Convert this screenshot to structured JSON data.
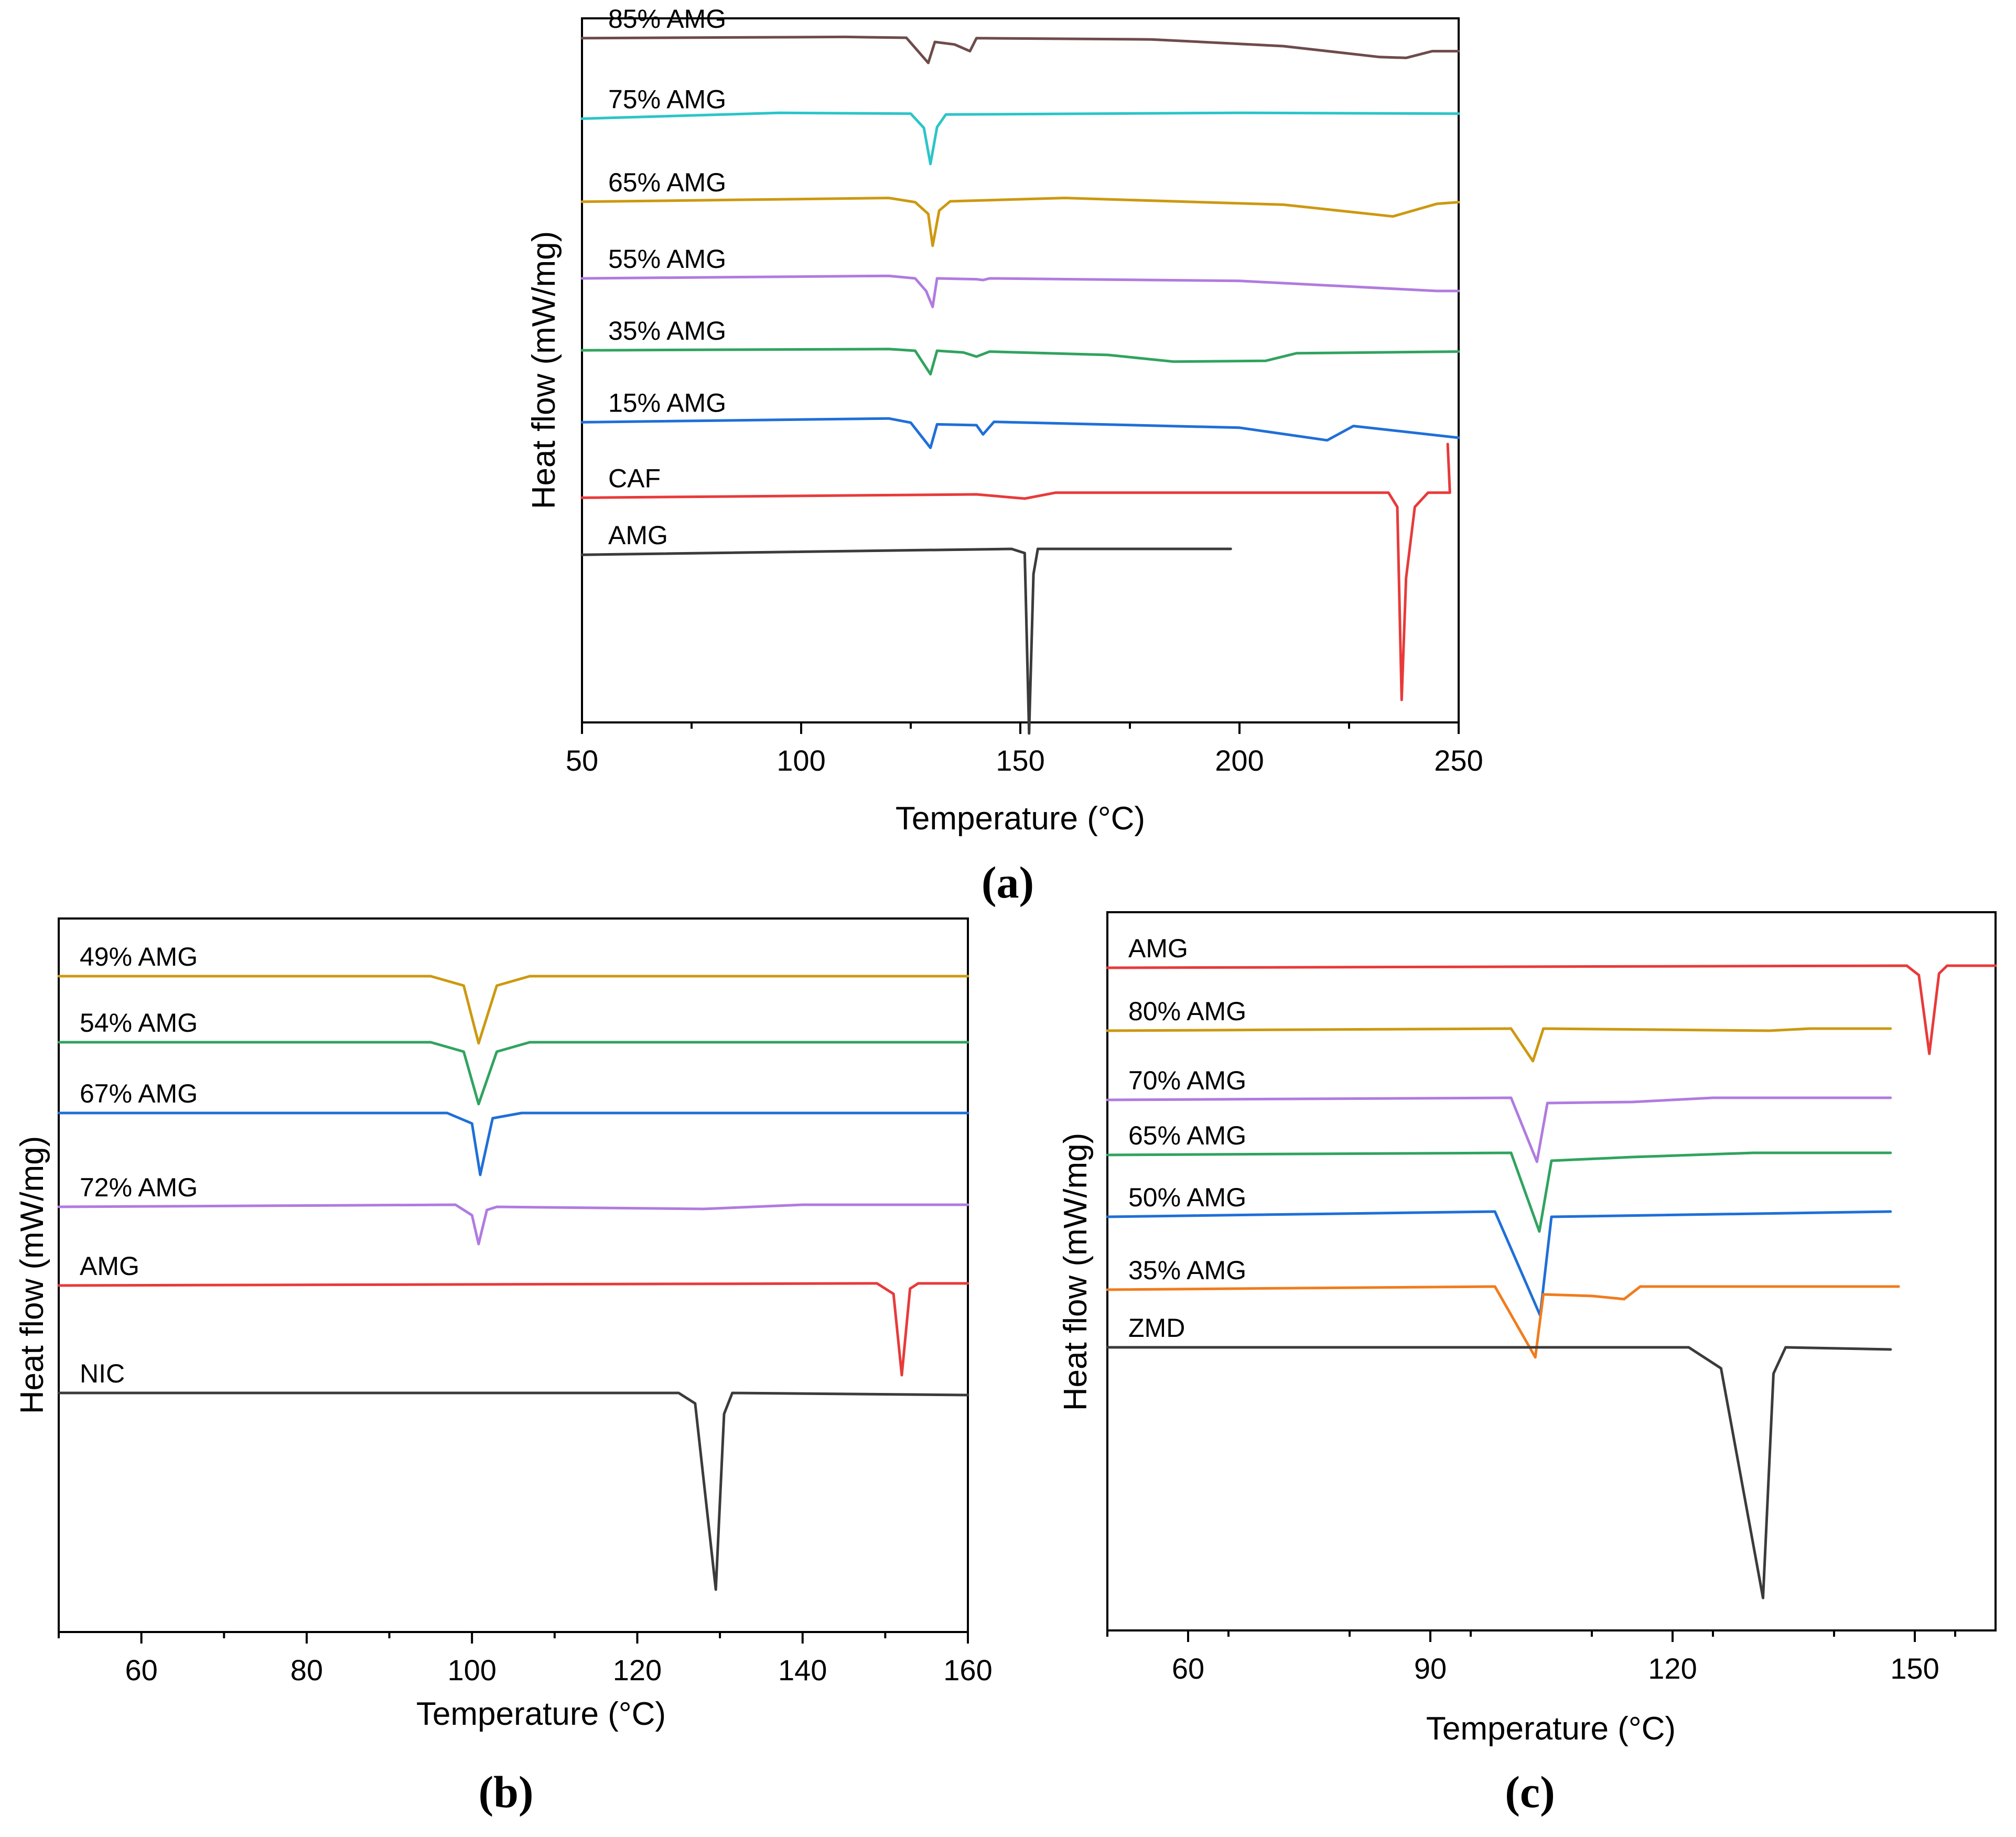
{
  "chart_data": [
    {
      "id": "a",
      "type": "line",
      "caption": "(a)",
      "xlabel": "Temperature (°C)",
      "ylabel": "Heat flow (mW/mg)",
      "xlim": [
        50,
        250
      ],
      "xticks": [
        50,
        100,
        150,
        200,
        250
      ],
      "tick_labels": [
        "50",
        "100",
        "150",
        "200",
        "250"
      ],
      "minor_step": 25,
      "series": [
        {
          "name": "85% AMG",
          "color": "#6e4b4b",
          "baseline": 30,
          "features": [
            {
              "at": 50,
              "value": 29.5
            },
            {
              "at": 110,
              "value": 31
            },
            {
              "at": 124,
              "value": 30
            },
            {
              "at": 129,
              "value": 0
            },
            {
              "at": 130.5,
              "value": 25
            },
            {
              "at": 135,
              "value": 22
            },
            {
              "at": 138.5,
              "value": 14
            },
            {
              "at": 140,
              "value": 29.5
            },
            {
              "at": 180,
              "value": 28
            },
            {
              "at": 210,
              "value": 20
            },
            {
              "at": 232,
              "value": 7
            },
            {
              "at": 238,
              "value": 6
            },
            {
              "at": 244,
              "value": 14
            },
            {
              "at": 250,
              "value": 14
            }
          ]
        },
        {
          "name": "75% AMG",
          "color": "#2bc5c8",
          "baseline": 21,
          "features": [
            {
              "at": 50,
              "value": 16
            },
            {
              "at": 95,
              "value": 23
            },
            {
              "at": 125,
              "value": 22
            },
            {
              "at": 128,
              "value": 5
            },
            {
              "at": 129.5,
              "value": -38
            },
            {
              "at": 131,
              "value": 6
            },
            {
              "at": 133,
              "value": 21
            },
            {
              "at": 200,
              "value": 23
            },
            {
              "at": 250,
              "value": 22
            }
          ]
        },
        {
          "name": "65% AMG",
          "color": "#cc9910",
          "baseline": 19,
          "features": [
            {
              "at": 50,
              "value": 14.5
            },
            {
              "at": 120,
              "value": 19
            },
            {
              "at": 126,
              "value": 14
            },
            {
              "at": 129,
              "value": 0
            },
            {
              "at": 130,
              "value": -38
            },
            {
              "at": 131.5,
              "value": 4
            },
            {
              "at": 134,
              "value": 15
            },
            {
              "at": 160,
              "value": 19
            },
            {
              "at": 210,
              "value": 11
            },
            {
              "at": 235,
              "value": -3
            },
            {
              "at": 245,
              "value": 12
            },
            {
              "at": 250,
              "value": 14
            }
          ]
        },
        {
          "name": "55% AMG",
          "color": "#b07be0",
          "baseline": 18,
          "features": [
            {
              "at": 50,
              "value": 15
            },
            {
              "at": 120,
              "value": 18
            },
            {
              "at": 126,
              "value": 15
            },
            {
              "at": 128.5,
              "value": 0
            },
            {
              "at": 130,
              "value": -19
            },
            {
              "at": 131,
              "value": 15
            },
            {
              "at": 140,
              "value": 14
            },
            {
              "at": 141.5,
              "value": 13
            },
            {
              "at": 143,
              "value": 15
            },
            {
              "at": 200,
              "value": 12
            },
            {
              "at": 245,
              "value": 0
            },
            {
              "at": 250,
              "value": 0
            }
          ]
        },
        {
          "name": "35% AMG",
          "color": "#31a35f",
          "baseline": 17,
          "features": [
            {
              "at": 50,
              "value": 15.5
            },
            {
              "at": 120,
              "value": 17
            },
            {
              "at": 126,
              "value": 15
            },
            {
              "at": 129.5,
              "value": -13
            },
            {
              "at": 131,
              "value": 15
            },
            {
              "at": 137,
              "value": 13
            },
            {
              "at": 140,
              "value": 8
            },
            {
              "at": 143,
              "value": 14
            },
            {
              "at": 170,
              "value": 10
            },
            {
              "at": 185,
              "value": 2
            },
            {
              "at": 206,
              "value": 3
            },
            {
              "at": 213,
              "value": 12
            },
            {
              "at": 250,
              "value": 14
            }
          ]
        },
        {
          "name": "15% AMG",
          "color": "#1f6fd8",
          "baseline": 20,
          "features": [
            {
              "at": 50,
              "value": 18.5
            },
            {
              "at": 120,
              "value": 23
            },
            {
              "at": 125,
              "value": 18
            },
            {
              "at": 129.5,
              "value": -12
            },
            {
              "at": 131,
              "value": 16
            },
            {
              "at": 140,
              "value": 15
            },
            {
              "at": 141.5,
              "value": 4
            },
            {
              "at": 144,
              "value": 19
            },
            {
              "at": 200,
              "value": 12
            },
            {
              "at": 220,
              "value": -3
            },
            {
              "at": 226,
              "value": 14
            },
            {
              "at": 250,
              "value": 0
            }
          ]
        },
        {
          "name": "CAF",
          "color": "#e83a3a",
          "baseline": 18,
          "features": [
            {
              "at": 50,
              "value": 16
            },
            {
              "at": 140,
              "value": 20
            },
            {
              "at": 151,
              "value": 15
            },
            {
              "at": 158,
              "value": 22
            },
            {
              "at": 234,
              "value": 22
            },
            {
              "at": 236,
              "value": 5
            },
            {
              "at": 237,
              "value": -225
            },
            {
              "at": 238,
              "value": -80
            },
            {
              "at": 240,
              "value": 5
            },
            {
              "at": 243,
              "value": 22
            },
            {
              "at": 248,
              "value": 22
            },
            {
              "at": 247.5,
              "value": 80
            }
          ]
        },
        {
          "name": "AMG",
          "color": "#3b3b3b",
          "baseline": 26,
          "features": [
            {
              "at": 50,
              "value": 23
            },
            {
              "at": 148,
              "value": 30
            },
            {
              "at": 151,
              "value": 25
            },
            {
              "at": 152,
              "value": -190
            },
            {
              "at": 153,
              "value": 0
            },
            {
              "at": 154,
              "value": 30
            },
            {
              "at": 198,
              "value": 30
            }
          ]
        }
      ]
    },
    {
      "id": "b",
      "type": "line",
      "caption": "(b)",
      "xlabel": "Temperature (°C)",
      "ylabel": "Heat flow (mW/mg)",
      "xlim": [
        50,
        160
      ],
      "xticks": [
        60,
        80,
        100,
        120,
        140,
        160
      ],
      "tick_labels": [
        "60",
        "80",
        "100",
        "120",
        "140",
        "160"
      ],
      "minor_step": 10,
      "series": [
        {
          "name": "49% AMG",
          "color": "#cc9910",
          "baseline": 0,
          "features": [
            {
              "at": 50,
              "value": 0
            },
            {
              "at": 95,
              "value": 0
            },
            {
              "at": 99,
              "value": -18
            },
            {
              "at": 100.8,
              "value": -128
            },
            {
              "at": 103,
              "value": -18
            },
            {
              "at": 107,
              "value": 0
            },
            {
              "at": 160,
              "value": 0
            }
          ]
        },
        {
          "name": "54% AMG",
          "color": "#31a35f",
          "baseline": 0,
          "features": [
            {
              "at": 50,
              "value": 0
            },
            {
              "at": 95,
              "value": 0
            },
            {
              "at": 99,
              "value": -18
            },
            {
              "at": 100.8,
              "value": -118
            },
            {
              "at": 103,
              "value": -18
            },
            {
              "at": 107,
              "value": 0
            },
            {
              "at": 160,
              "value": 0
            }
          ]
        },
        {
          "name": "67% AMG",
          "color": "#1f6fd8",
          "baseline": 0,
          "features": [
            {
              "at": 50,
              "value": 0
            },
            {
              "at": 97,
              "value": 0
            },
            {
              "at": 100,
              "value": -20
            },
            {
              "at": 101,
              "value": -118
            },
            {
              "at": 102.5,
              "value": -10
            },
            {
              "at": 106,
              "value": 0
            },
            {
              "at": 160,
              "value": 0
            }
          ]
        },
        {
          "name": "72% AMG",
          "color": "#b07be0",
          "baseline": 0,
          "features": [
            {
              "at": 50,
              "value": -4
            },
            {
              "at": 98,
              "value": 0
            },
            {
              "at": 100,
              "value": -20
            },
            {
              "at": 100.8,
              "value": -75
            },
            {
              "at": 101.8,
              "value": -10
            },
            {
              "at": 103,
              "value": -4
            },
            {
              "at": 128,
              "value": -8
            },
            {
              "at": 140,
              "value": 0
            },
            {
              "at": 160,
              "value": 0
            }
          ]
        },
        {
          "name": "AMG",
          "color": "#e83a3a",
          "baseline": 0,
          "features": [
            {
              "at": 50,
              "value": -4
            },
            {
              "at": 149,
              "value": 0
            },
            {
              "at": 151,
              "value": -20
            },
            {
              "at": 152,
              "value": -175
            },
            {
              "at": 153,
              "value": -10
            },
            {
              "at": 154,
              "value": 0
            },
            {
              "at": 160,
              "value": 0
            }
          ]
        },
        {
          "name": "NIC",
          "color": "#3b3b3b",
          "baseline": 0,
          "features": [
            {
              "at": 50,
              "value": 0
            },
            {
              "at": 125,
              "value": 0
            },
            {
              "at": 127,
              "value": -20
            },
            {
              "at": 129.5,
              "value": -375
            },
            {
              "at": 130.5,
              "value": -40
            },
            {
              "at": 131.5,
              "value": 0
            },
            {
              "at": 160,
              "value": -4
            }
          ]
        }
      ]
    },
    {
      "id": "c",
      "type": "line",
      "caption": "(c)",
      "xlabel": "Temperature (°C)",
      "ylabel": "Heat flow (mW/mg)",
      "xlim": [
        50,
        160
      ],
      "xticks": [
        60,
        90,
        120,
        150
      ],
      "tick_labels": [
        "60",
        "90",
        "120",
        "150"
      ],
      "minor_step": 15,
      "series": [
        {
          "name": "AMG",
          "color": "#e83a3a",
          "baseline": 0,
          "features": [
            {
              "at": 50,
              "value": -4
            },
            {
              "at": 149,
              "value": 0
            },
            {
              "at": 150.5,
              "value": -18
            },
            {
              "at": 151.8,
              "value": -168
            },
            {
              "at": 153,
              "value": -15
            },
            {
              "at": 154,
              "value": 0
            },
            {
              "at": 160,
              "value": 0
            }
          ]
        },
        {
          "name": "80% AMG",
          "color": "#cc9910",
          "baseline": 0,
          "features": [
            {
              "at": 50,
              "value": -4
            },
            {
              "at": 100,
              "value": 0
            },
            {
              "at": 102.7,
              "value": -62
            },
            {
              "at": 104,
              "value": 0
            },
            {
              "at": 132,
              "value": -4
            },
            {
              "at": 137,
              "value": 0
            },
            {
              "at": 147,
              "value": 0
            }
          ]
        },
        {
          "name": "70% AMG",
          "color": "#b07be0",
          "baseline": 0,
          "features": [
            {
              "at": 50,
              "value": -4
            },
            {
              "at": 100,
              "value": 0
            },
            {
              "at": 103.2,
              "value": -122
            },
            {
              "at": 104.5,
              "value": -10
            },
            {
              "at": 115,
              "value": -8
            },
            {
              "at": 125,
              "value": 0
            },
            {
              "at": 147,
              "value": 0
            }
          ]
        },
        {
          "name": "65% AMG",
          "color": "#31a35f",
          "baseline": 0,
          "features": [
            {
              "at": 50,
              "value": -4
            },
            {
              "at": 100,
              "value": 0
            },
            {
              "at": 103.5,
              "value": -150
            },
            {
              "at": 105,
              "value": -15
            },
            {
              "at": 115,
              "value": -8
            },
            {
              "at": 130,
              "value": 0
            },
            {
              "at": 147,
              "value": 0
            }
          ]
        },
        {
          "name": "50% AMG",
          "color": "#1f6fd8",
          "baseline": 0,
          "features": [
            {
              "at": 50,
              "value": -10
            },
            {
              "at": 98,
              "value": 0
            },
            {
              "at": 103.6,
              "value": -198
            },
            {
              "at": 105,
              "value": -10
            },
            {
              "at": 147,
              "value": 0
            }
          ]
        },
        {
          "name": "35% AMG",
          "color": "#f07c1e",
          "baseline": 0,
          "features": [
            {
              "at": 50,
              "value": -6
            },
            {
              "at": 98,
              "value": 0
            },
            {
              "at": 103,
              "value": -135
            },
            {
              "at": 104,
              "value": -15
            },
            {
              "at": 110,
              "value": -18
            },
            {
              "at": 114,
              "value": -24
            },
            {
              "at": 116,
              "value": 0
            },
            {
              "at": 148,
              "value": 0
            }
          ]
        },
        {
          "name": "ZMD",
          "color": "#3b3b3b",
          "baseline": 0,
          "features": [
            {
              "at": 50,
              "value": 0
            },
            {
              "at": 122,
              "value": 0
            },
            {
              "at": 126,
              "value": -40
            },
            {
              "at": 131.2,
              "value": -478
            },
            {
              "at": 132.5,
              "value": -50
            },
            {
              "at": 134,
              "value": 0
            },
            {
              "at": 147,
              "value": -4
            }
          ]
        }
      ]
    }
  ]
}
